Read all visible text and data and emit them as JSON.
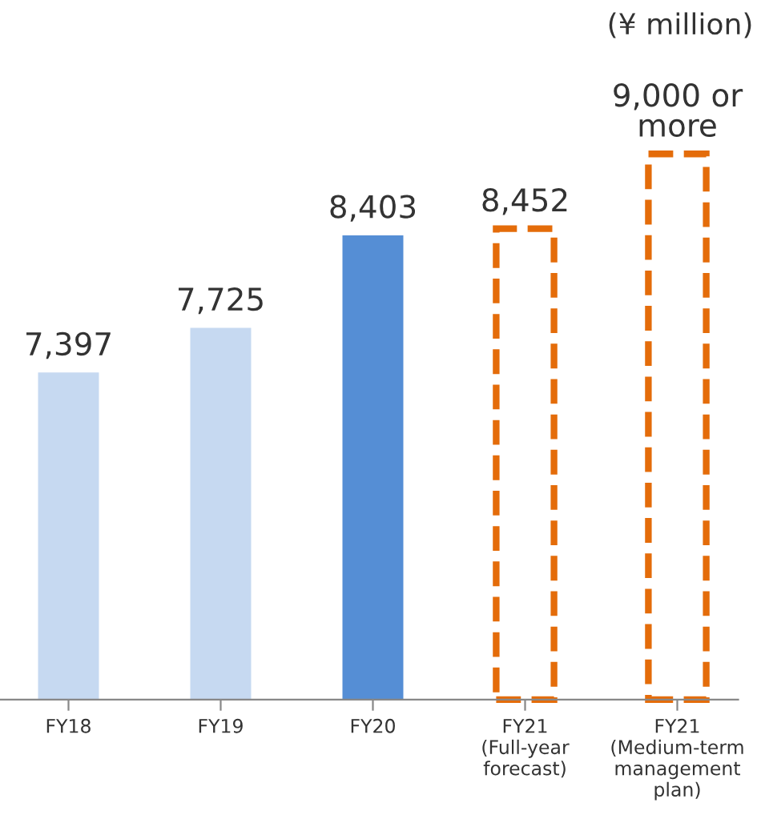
{
  "chart_data": {
    "type": "bar",
    "annotations": [
      "(¥ million)"
    ],
    "categories": [
      "FY18",
      "FY19",
      "FY20",
      "FY21\n(Full-year\nforecast)",
      "FY21\n(Medium-term\nmanagement\nplan)"
    ],
    "series": [
      {
        "colors": [
          "#c6d9f1",
          "#c6d9f1",
          "#558ed5",
          null,
          null
        ],
        "values": [
          7397,
          7725,
          8403,
          null,
          null
        ],
        "value_labels": [
          "7,397",
          "7,725",
          "8,403",
          null,
          null
        ]
      },
      {
        "color": "#e46c0a",
        "line_style": "dashed",
        "values": [
          null,
          null,
          null,
          8452,
          9000
        ],
        "value_labels": [
          null,
          null,
          null,
          "8,452",
          "9,000 or\nmore"
        ]
      }
    ],
    "ylim": [
      5000,
      9000
    ],
    "tick_labels": "x",
    "grid": false,
    "legend": false
  }
}
